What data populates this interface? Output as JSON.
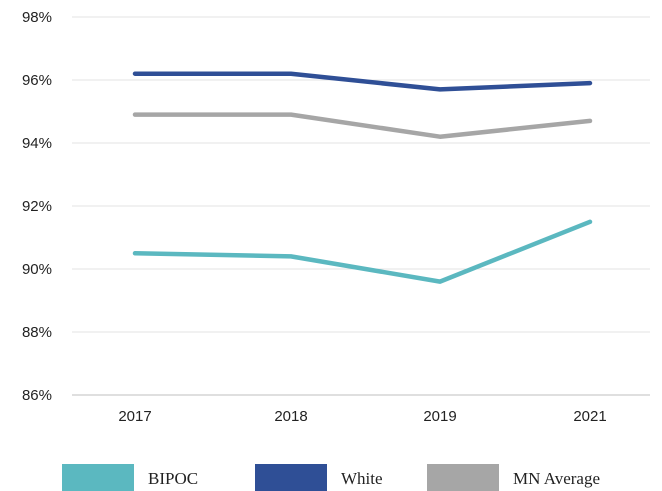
{
  "chart_data": {
    "type": "line",
    "title": "",
    "xlabel": "",
    "ylabel": "",
    "categories": [
      "2017",
      "2018",
      "2019",
      "2021"
    ],
    "ylim": [
      86,
      98
    ],
    "yticks": [
      98,
      96,
      94,
      92,
      90,
      88,
      86
    ],
    "ytick_labels": [
      "98%",
      "96%",
      "94%",
      "92%",
      "90%",
      "88%",
      "86%"
    ],
    "grid": true,
    "legend_position": "bottom",
    "series": [
      {
        "name": "BIPOC",
        "color": "#5bb8c0",
        "values": [
          90.5,
          90.4,
          89.6,
          91.5
        ]
      },
      {
        "name": "White",
        "color": "#2f4f96",
        "values": [
          96.2,
          96.2,
          95.7,
          95.9
        ]
      },
      {
        "name": "MN Average",
        "color": "#a6a6a6",
        "values": [
          94.9,
          94.9,
          94.2,
          94.7
        ]
      }
    ]
  }
}
